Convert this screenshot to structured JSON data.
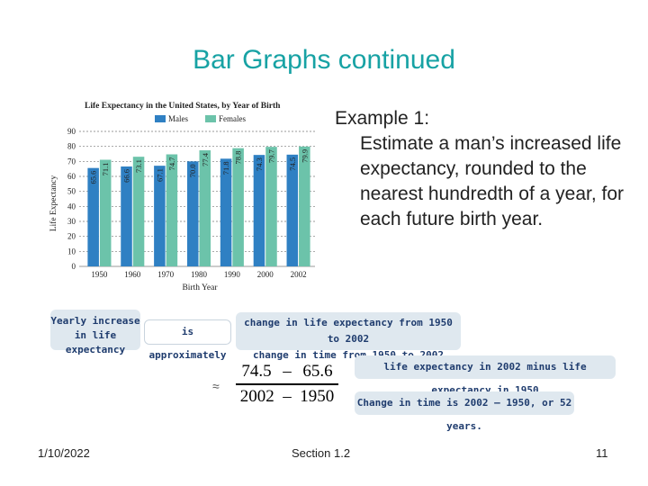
{
  "slide": {
    "title": "Bar Graphs continued",
    "example_heading": "Example 1:",
    "example_text": "Estimate a man’s increased life expectancy, rounded to the nearest hundredth of a year, for each future birth year.",
    "footer_date": "1/10/2022",
    "footer_section": "Section 1.2",
    "footer_page": "11"
  },
  "annotations": {
    "yearly_increase": "Yearly increase in life expectancy",
    "is_approximately": "is approximately",
    "change_line1": "change in life expectancy from 1950 to 2002",
    "change_line2": "change in time from 1950 to 2002",
    "life_expectancy_diff": "life expectancy in 2002 minus life expectancy in 1950",
    "time_change": "Change in time is 2002 – 1950, or 52 years.",
    "approx_symbol": "≈",
    "formula": {
      "num_a": "74.5",
      "num_op": "–",
      "num_b": "65.6",
      "den_a": "2002",
      "den_op": "–",
      "den_b": "1950"
    }
  },
  "chart_data": {
    "type": "bar",
    "title": "Life Expectancy in the United States, by Year of Birth",
    "xlabel": "Birth Year",
    "ylabel": "Life Expectancy",
    "categories": [
      "1950",
      "1960",
      "1970",
      "1980",
      "1990",
      "2000",
      "2002"
    ],
    "series": [
      {
        "name": "Males",
        "values": [
          65.6,
          66.6,
          67.1,
          70.0,
          71.8,
          74.3,
          74.5
        ]
      },
      {
        "name": "Females",
        "values": [
          71.1,
          73.1,
          74.7,
          77.4,
          78.8,
          79.7,
          79.9
        ]
      }
    ],
    "ylim": [
      0,
      90
    ],
    "yticks": [
      0,
      10,
      20,
      30,
      40,
      50,
      60,
      70,
      80,
      90
    ],
    "grid": true,
    "legend_position": "top",
    "colors": {
      "Males": "#2f80c3",
      "Females": "#6cc3aa",
      "grid": "#777777"
    }
  }
}
